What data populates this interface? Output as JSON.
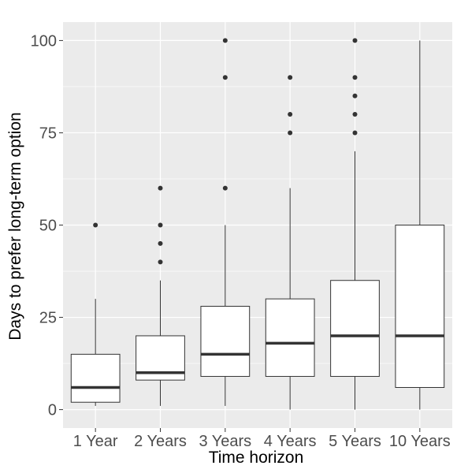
{
  "chart_data": {
    "type": "boxplot",
    "title": "",
    "xlabel": "Time horizon",
    "ylabel": "Days to prefer long-term option",
    "ylim": [
      -5,
      105
    ],
    "yticks": [
      0,
      25,
      50,
      75,
      100
    ],
    "grid": true,
    "theme": {
      "panel_background": "#ebebeb",
      "grid_color": "#ffffff",
      "box_fill": "#ffffff",
      "box_stroke": "#333333",
      "point_color": "#333333",
      "text_color": "#4d4d4d"
    },
    "categories": [
      "1 Year",
      "2 Years",
      "3 Years",
      "4 Years",
      "5 Years",
      "10 Years"
    ],
    "boxes": [
      {
        "category": "1 Year",
        "min": 1,
        "q1": 2,
        "median": 6,
        "q3": 15,
        "max": 30,
        "outliers": [
          50
        ]
      },
      {
        "category": "2 Years",
        "min": 1,
        "q1": 8,
        "median": 10,
        "q3": 20,
        "max": 35,
        "outliers": [
          40,
          45,
          50,
          60
        ]
      },
      {
        "category": "3 Years",
        "min": 1,
        "q1": 9,
        "median": 15,
        "q3": 28,
        "max": 50,
        "outliers": [
          60,
          90,
          100
        ]
      },
      {
        "category": "4 Years",
        "min": 0,
        "q1": 9,
        "median": 18,
        "q3": 30,
        "max": 60,
        "outliers": [
          75,
          80,
          90
        ]
      },
      {
        "category": "5 Years",
        "min": 0,
        "q1": 9,
        "median": 20,
        "q3": 35,
        "max": 70,
        "outliers": [
          75,
          80,
          85,
          90,
          100
        ]
      },
      {
        "category": "10 Years",
        "min": 0,
        "q1": 6,
        "median": 20,
        "q3": 50,
        "max": 100,
        "outliers": []
      }
    ]
  }
}
